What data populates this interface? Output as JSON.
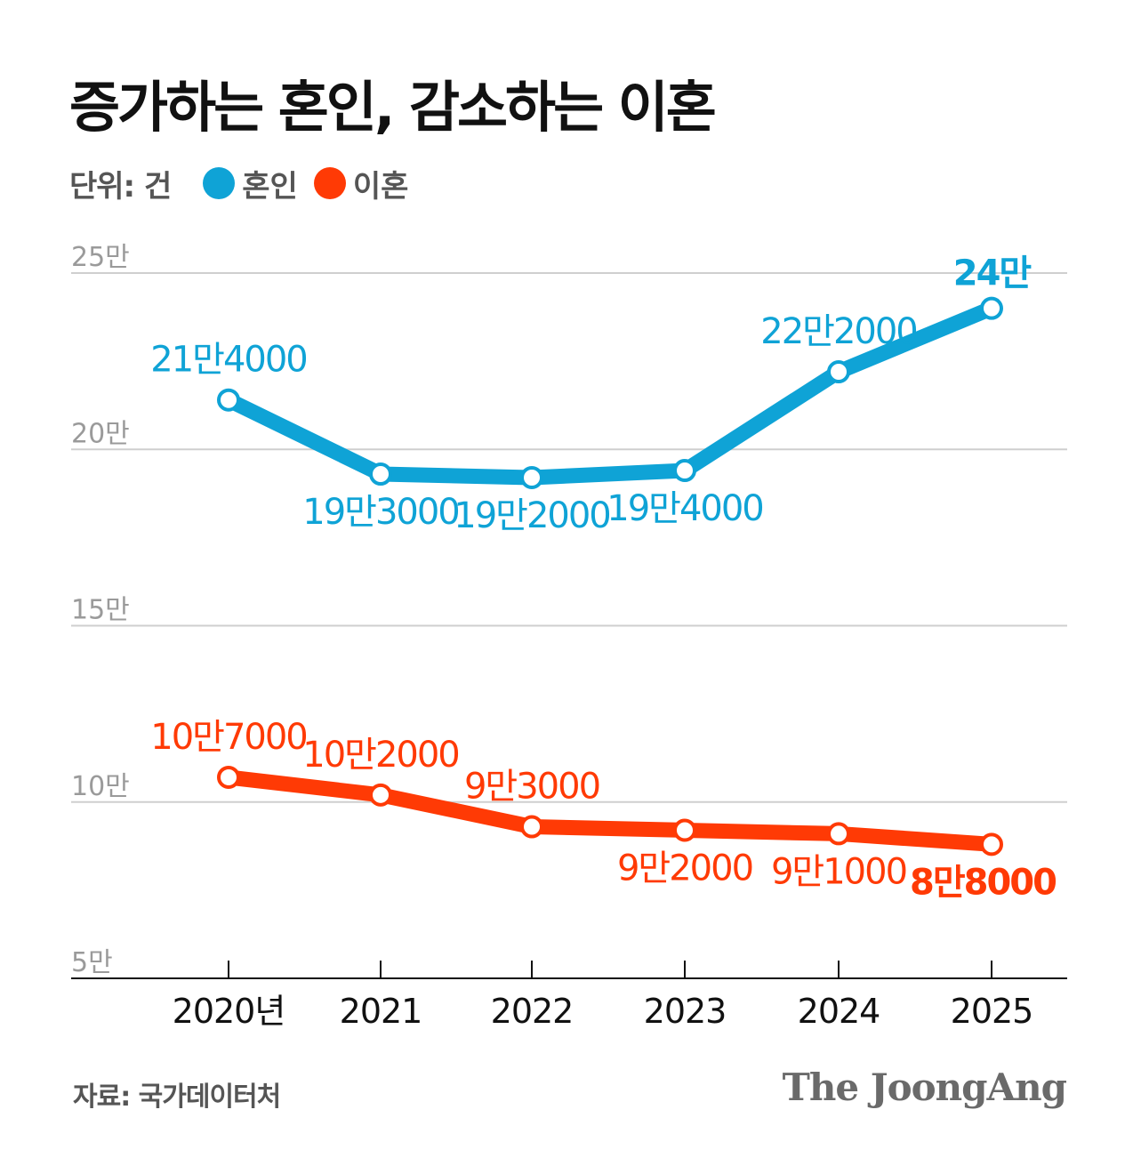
{
  "title": "증가하는 혼인, 감소하는 이혼",
  "legend": {
    "unit": "단위: 건",
    "marriage": {
      "label": "혼인",
      "color": "#0fa3d6"
    },
    "divorce": {
      "label": "이혼",
      "color": "#ff3a05"
    }
  },
  "source": "자료: 국가데이터처",
  "brand": "The JoongAng",
  "chart_data": {
    "type": "line",
    "categories": [
      "2020년",
      "2021",
      "2022",
      "2023",
      "2024",
      "2025"
    ],
    "y_ticks": [
      {
        "value": 250000,
        "label": "25만"
      },
      {
        "value": 200000,
        "label": "20만"
      },
      {
        "value": 150000,
        "label": "15만"
      },
      {
        "value": 100000,
        "label": "10만"
      },
      {
        "value": 50000,
        "label": "5만"
      }
    ],
    "ylim": [
      50000,
      250000
    ],
    "grid": true,
    "series": [
      {
        "name": "혼인",
        "color": "#0fa3d6",
        "values": [
          214000,
          193000,
          192000,
          194000,
          222000,
          240000
        ],
        "labels": [
          "21만4000",
          "19만3000",
          "19만2000",
          "19만4000",
          "22만2000",
          "24만"
        ],
        "label_pos": [
          "above",
          "below",
          "below",
          "below",
          "above",
          "above"
        ]
      },
      {
        "name": "이혼",
        "color": "#ff3a05",
        "values": [
          107000,
          102000,
          93000,
          92000,
          91000,
          88000
        ],
        "labels": [
          "10만7000",
          "10만2000",
          "9만3000",
          "9만2000",
          "9만1000",
          "8만8000"
        ],
        "label_pos": [
          "above",
          "above",
          "above",
          "below",
          "below",
          "below"
        ]
      }
    ]
  }
}
